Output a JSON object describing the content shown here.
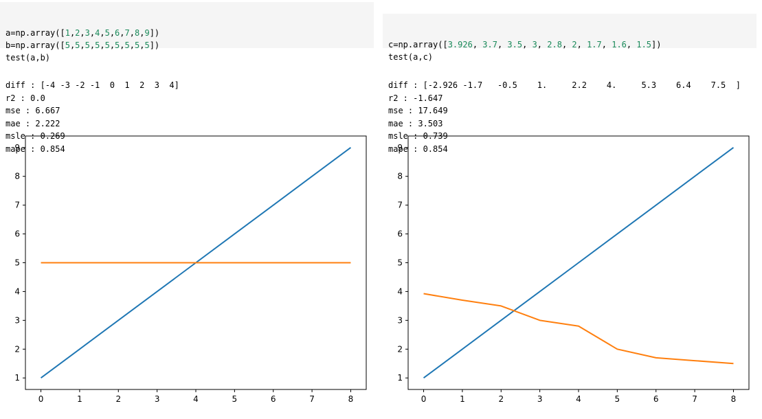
{
  "left": {
    "code": [
      {
        "parts": [
          {
            "t": "a=np.array(["
          },
          {
            "t": "1",
            "num": true
          },
          {
            "t": ","
          },
          {
            "t": "2",
            "num": true
          },
          {
            "t": ","
          },
          {
            "t": "3",
            "num": true
          },
          {
            "t": ","
          },
          {
            "t": "4",
            "num": true
          },
          {
            "t": ","
          },
          {
            "t": "5",
            "num": true
          },
          {
            "t": ","
          },
          {
            "t": "6",
            "num": true
          },
          {
            "t": ","
          },
          {
            "t": "7",
            "num": true
          },
          {
            "t": ","
          },
          {
            "t": "8",
            "num": true
          },
          {
            "t": ","
          },
          {
            "t": "9",
            "num": true
          },
          {
            "t": "])"
          }
        ]
      },
      {
        "parts": [
          {
            "t": "b=np.array(["
          },
          {
            "t": "5",
            "num": true
          },
          {
            "t": ","
          },
          {
            "t": "5",
            "num": true
          },
          {
            "t": ","
          },
          {
            "t": "5",
            "num": true
          },
          {
            "t": ","
          },
          {
            "t": "5",
            "num": true
          },
          {
            "t": ","
          },
          {
            "t": "5",
            "num": true
          },
          {
            "t": ","
          },
          {
            "t": "5",
            "num": true
          },
          {
            "t": ","
          },
          {
            "t": "5",
            "num": true
          },
          {
            "t": ","
          },
          {
            "t": "5",
            "num": true
          },
          {
            "t": ","
          },
          {
            "t": "5",
            "num": true
          },
          {
            "t": "])"
          }
        ]
      },
      {
        "parts": [
          {
            "t": "test(a,b)"
          }
        ]
      }
    ],
    "output": [
      "diff : [-4 -3 -2 -1  0  1  2  3  4]",
      "r2 : 0.0",
      "mse : 6.667",
      "mae : 2.222",
      "msle : 0.269",
      "mape : 0.854"
    ]
  },
  "right": {
    "code": [
      {
        "parts": [
          {
            "t": "c=np.array(["
          },
          {
            "t": "3.926",
            "num": true
          },
          {
            "t": ", "
          },
          {
            "t": "3.7",
            "num": true
          },
          {
            "t": ", "
          },
          {
            "t": "3.5",
            "num": true
          },
          {
            "t": ", "
          },
          {
            "t": "3",
            "num": true
          },
          {
            "t": ", "
          },
          {
            "t": "2.8",
            "num": true
          },
          {
            "t": ", "
          },
          {
            "t": "2",
            "num": true
          },
          {
            "t": ", "
          },
          {
            "t": "1.7",
            "num": true
          },
          {
            "t": ", "
          },
          {
            "t": "1.6",
            "num": true
          },
          {
            "t": ", "
          },
          {
            "t": "1.5",
            "num": true
          },
          {
            "t": "])"
          }
        ]
      },
      {
        "parts": [
          {
            "t": "test(a,c)"
          }
        ]
      }
    ],
    "output": [
      "diff : [-2.926 -1.7   -0.5    1.     2.2    4.     5.3    6.4    7.5  ]",
      "r2 : -1.647",
      "mse : 17.649",
      "mae : 3.503",
      "msle : 0.739",
      "mape : 0.854"
    ]
  },
  "chart_data": [
    {
      "type": "line",
      "x": [
        0,
        1,
        2,
        3,
        4,
        5,
        6,
        7,
        8
      ],
      "series": [
        {
          "values": [
            1,
            2,
            3,
            4,
            5,
            6,
            7,
            8,
            9
          ],
          "color": "#1f77b4"
        },
        {
          "values": [
            5,
            5,
            5,
            5,
            5,
            5,
            5,
            5,
            5
          ],
          "color": "#ff7f0e"
        }
      ],
      "xticks": [
        0,
        1,
        2,
        3,
        4,
        5,
        6,
        7,
        8
      ],
      "yticks": [
        1,
        2,
        3,
        4,
        5,
        6,
        7,
        8,
        9
      ],
      "xlim": [
        -0.4,
        8.4
      ],
      "ylim": [
        0.6,
        9.4
      ],
      "grid": false
    },
    {
      "type": "line",
      "x": [
        0,
        1,
        2,
        3,
        4,
        5,
        6,
        7,
        8
      ],
      "series": [
        {
          "values": [
            1,
            2,
            3,
            4,
            5,
            6,
            7,
            8,
            9
          ],
          "color": "#1f77b4"
        },
        {
          "values": [
            3.926,
            3.7,
            3.5,
            3,
            2.8,
            2,
            1.7,
            1.6,
            1.5
          ],
          "color": "#ff7f0e"
        }
      ],
      "xticks": [
        0,
        1,
        2,
        3,
        4,
        5,
        6,
        7,
        8
      ],
      "yticks": [
        1,
        2,
        3,
        4,
        5,
        6,
        7,
        8,
        9
      ],
      "xlim": [
        -0.4,
        8.4
      ],
      "ylim": [
        0.6,
        9.4
      ],
      "grid": false
    }
  ]
}
